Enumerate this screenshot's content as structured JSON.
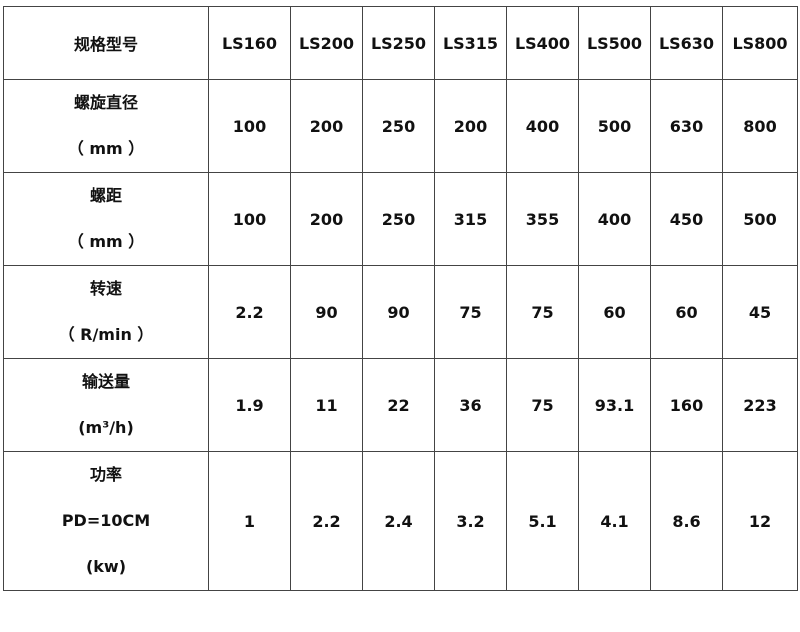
{
  "table": {
    "header": {
      "label": "规格型号",
      "models": [
        "LS160",
        "LS200",
        "LS250",
        "LS315",
        "LS400",
        "LS500",
        "LS630",
        "LS800"
      ]
    },
    "rows": [
      {
        "label_lines": [
          "螺旋直径",
          "（ mm ）"
        ],
        "values": [
          "100",
          "200",
          "250",
          "200",
          "400",
          "500",
          "630",
          "800"
        ]
      },
      {
        "label_lines": [
          "螺距",
          "（ mm ）"
        ],
        "values": [
          "100",
          "200",
          "250",
          "315",
          "355",
          "400",
          "450",
          "500"
        ]
      },
      {
        "label_lines": [
          "转速",
          "（ R/min ）"
        ],
        "values": [
          "2.2",
          "90",
          "90",
          "75",
          "75",
          "60",
          "60",
          "45"
        ]
      },
      {
        "label_lines": [
          "输送量",
          "(m³/h)"
        ],
        "values": [
          "1.9",
          "11",
          "22",
          "36",
          "75",
          "93.1",
          "160",
          "223"
        ]
      },
      {
        "label_lines": [
          "功率",
          "PD=10CM",
          "(kw)"
        ],
        "values": [
          "1",
          "2.2",
          "2.4",
          "3.2",
          "5.1",
          "4.1",
          "8.6",
          "12"
        ]
      }
    ]
  }
}
